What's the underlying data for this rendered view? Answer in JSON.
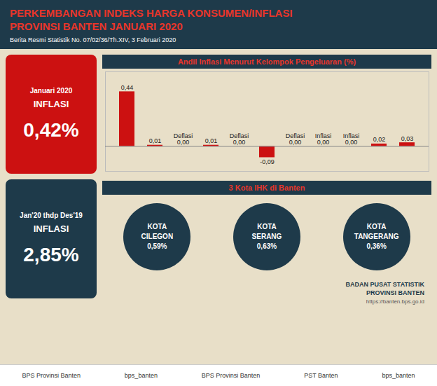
{
  "chart_data": {
    "type": "bar",
    "title": "PERKEMBANGAN INDEKS HARGA KONSUMEN/INFLASI\nPROVINSI BANTEN JANUARI 2020",
    "subtitle": "Berita Resmi Statistik No. 07/02/36/Th.XIV, 3 Februari 2020",
    "categories": [
      null,
      null,
      null,
      null,
      null,
      null,
      null,
      null,
      null,
      null,
      null
    ],
    "values": [
      0.44,
      0.01,
      0.0,
      0.01,
      0.0,
      -0.09,
      0.0,
      0.0,
      0.0,
      0.02,
      0.03
    ],
    "value_labels": [
      "0,44",
      "0,01",
      "Deflasi\n0,00",
      "0,01",
      "Deflasi\n0,00",
      "-0,09",
      "Deflasi\n0,00",
      "Inflasi\n0,00",
      "Inflasi\n0,00",
      "0,02",
      "0,03"
    ],
    "data_labels": true,
    "color": "#cc1111",
    "ylim": [
      -0.2,
      0.6
    ],
    "tick_labels": false,
    "grid": false,
    "annotations": [
      "Januari 2020",
      "INFLASI",
      "0,42%",
      "Jan'20 thdp Des'19",
      "INFLASI",
      "2,85%",
      "Andil Inflasi Menurut Kelompok Pengeluaran (%)",
      "3 Kota IHK di Banten",
      "KOTA\nCILEGON\n0,59%",
      "KOTA\nSERANG\n0,63%",
      "KOTA\nTANGERANG\n0,36%",
      "BADAN PUSAT STATISTIK\nPROVINSI BANTEN",
      "https://banten.bps.go.id",
      "BPS Provinsi Banten",
      "bps_banten",
      "BPS Provinsi Banten",
      "PST Banten",
      "bps_banten"
    ]
  }
}
